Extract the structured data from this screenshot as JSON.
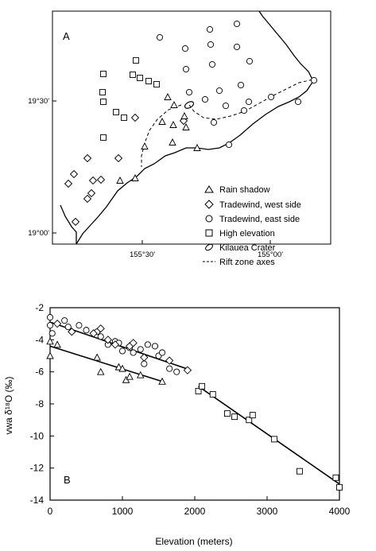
{
  "panel_a": {
    "label": "A",
    "lat_ticks": [
      "19°30'",
      "19°00'"
    ],
    "lon_ticks": [
      "155°30'",
      "155°00'"
    ],
    "legend": [
      {
        "marker": "triangle",
        "label": "Rain shadow"
      },
      {
        "marker": "diamond",
        "label": "Tradewind, west side"
      },
      {
        "marker": "circle",
        "label": "Tradewind, east side"
      },
      {
        "marker": "square",
        "label": "High elevation"
      },
      {
        "marker": "ellipse",
        "label": "Kilauea Crater"
      },
      {
        "marker": "dash",
        "label": "Rift zone axes"
      }
    ]
  },
  "chart_data": {
    "type": "scatter",
    "label": "B",
    "xlabel": "Elevation (meters)",
    "ylabel": "vwa δ¹⁸O (‰)",
    "xlim": [
      0,
      4000
    ],
    "ylim": [
      -14,
      -2
    ],
    "xticks": [
      0,
      1000,
      2000,
      3000,
      4000
    ],
    "yticks": [
      -2,
      -4,
      -6,
      -8,
      -10,
      -12,
      -14
    ],
    "grid": false,
    "series": [
      {
        "name": "Tradewind, east side",
        "marker": "circle",
        "points": [
          [
            0,
            -2.6
          ],
          [
            0,
            -3.1
          ],
          [
            30,
            -3.6
          ],
          [
            200,
            -2.8
          ],
          [
            250,
            -3.2
          ],
          [
            400,
            -3.1
          ],
          [
            500,
            -3.4
          ],
          [
            650,
            -3.5
          ],
          [
            700,
            -3.8
          ],
          [
            800,
            -4.3
          ],
          [
            900,
            -4.1
          ],
          [
            950,
            -4.2
          ],
          [
            1000,
            -4.7
          ],
          [
            1100,
            -4.5
          ],
          [
            1150,
            -4.8
          ],
          [
            1250,
            -4.6
          ],
          [
            1300,
            -5.5
          ],
          [
            1350,
            -4.3
          ],
          [
            1450,
            -4.4
          ],
          [
            1500,
            -5.0
          ],
          [
            1550,
            -4.8
          ],
          [
            1650,
            -5.8
          ],
          [
            1750,
            -6.0
          ]
        ]
      },
      {
        "name": "Tradewind, west side",
        "marker": "diamond",
        "points": [
          [
            100,
            -3.0
          ],
          [
            300,
            -3.5
          ],
          [
            600,
            -3.6
          ],
          [
            700,
            -3.3
          ],
          [
            800,
            -4.0
          ],
          [
            900,
            -4.3
          ],
          [
            1100,
            -4.4
          ],
          [
            1150,
            -4.2
          ],
          [
            1300,
            -5.1
          ],
          [
            1650,
            -5.3
          ],
          [
            1900,
            -5.9
          ]
        ]
      },
      {
        "name": "Rain shadow",
        "marker": "triangle",
        "points": [
          [
            0,
            -4.1
          ],
          [
            0,
            -5.0
          ],
          [
            100,
            -4.3
          ],
          [
            650,
            -5.1
          ],
          [
            700,
            -6.0
          ],
          [
            950,
            -5.7
          ],
          [
            1000,
            -5.8
          ],
          [
            1050,
            -6.5
          ],
          [
            1100,
            -6.3
          ],
          [
            1250,
            -6.2
          ],
          [
            1550,
            -6.6
          ]
        ]
      },
      {
        "name": "High elevation",
        "marker": "square",
        "points": [
          [
            2050,
            -7.2
          ],
          [
            2100,
            -6.9
          ],
          [
            2250,
            -7.4
          ],
          [
            2450,
            -8.6
          ],
          [
            2550,
            -8.8
          ],
          [
            2750,
            -9.0
          ],
          [
            2800,
            -8.7
          ],
          [
            3100,
            -10.2
          ],
          [
            3450,
            -12.2
          ],
          [
            3950,
            -12.6
          ],
          [
            4000,
            -13.2
          ]
        ]
      }
    ],
    "fit_lines": [
      {
        "x": [
          0,
          1950
        ],
        "y": [
          -2.9,
          -5.9
        ]
      },
      {
        "x": [
          0,
          1550
        ],
        "y": [
          -4.4,
          -6.6
        ]
      },
      {
        "x": [
          2050,
          4000
        ],
        "y": [
          -6.9,
          -13.0
        ]
      }
    ]
  }
}
